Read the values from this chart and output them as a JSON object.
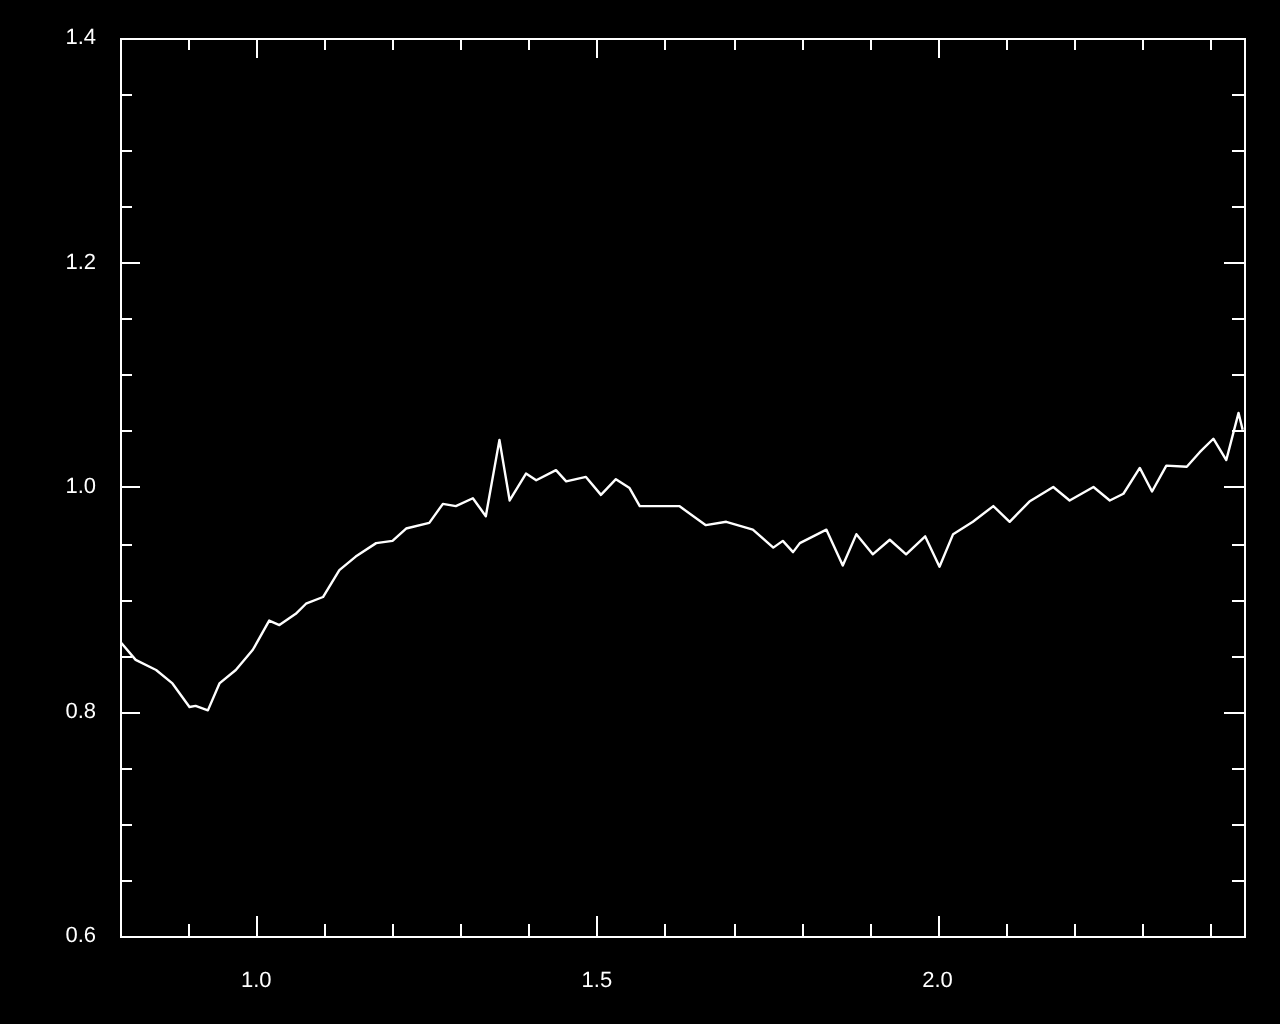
{
  "chart_data": {
    "type": "line",
    "color": "#ffffff",
    "marker": "none",
    "grid": false,
    "legend": false,
    "xlim": [
      0.8,
      2.45
    ],
    "xticks": [
      {
        "value": 0.9,
        "label": null
      },
      {
        "value": 1.0,
        "label": "1.0"
      },
      {
        "value": 1.1,
        "label": null
      },
      {
        "value": 1.2,
        "label": null
      },
      {
        "value": 1.3,
        "label": null
      },
      {
        "value": 1.4,
        "label": null
      },
      {
        "value": 1.5,
        "label": "1.5"
      },
      {
        "value": 1.6,
        "label": null
      },
      {
        "value": 1.7,
        "label": null
      },
      {
        "value": 1.8,
        "label": null
      },
      {
        "value": 1.9,
        "label": null
      },
      {
        "value": 2.0,
        "label": "2.0"
      },
      {
        "value": 2.1,
        "label": null
      },
      {
        "value": 2.2,
        "label": null
      },
      {
        "value": 2.3,
        "label": null
      },
      {
        "value": 2.4,
        "label": null
      }
    ],
    "ylim": [
      0.6,
      1.4
    ],
    "yticks": [
      {
        "value": 0.6,
        "label": "0.6"
      },
      {
        "value": 0.65,
        "label": null
      },
      {
        "value": 0.7,
        "label": null
      },
      {
        "value": 0.75,
        "label": null
      },
      {
        "value": 0.8,
        "label": "0.8"
      },
      {
        "value": 0.85,
        "label": null
      },
      {
        "value": 0.9,
        "label": null
      },
      {
        "value": 0.95,
        "label": null
      },
      {
        "value": 1.0,
        "label": "1.0"
      },
      {
        "value": 1.05,
        "label": null
      },
      {
        "value": 1.1,
        "label": null
      },
      {
        "value": 1.15,
        "label": null
      },
      {
        "value": 1.2,
        "label": "1.2"
      },
      {
        "value": 1.25,
        "label": null
      },
      {
        "value": 1.3,
        "label": null
      },
      {
        "value": 1.35,
        "label": null
      },
      {
        "value": 1.4,
        "label": "1.4"
      }
    ],
    "x": [
      0.802,
      0.823,
      0.853,
      0.877,
      0.902,
      0.911,
      0.929,
      0.946,
      0.97,
      0.995,
      1.019,
      1.034,
      1.058,
      1.073,
      1.098,
      1.122,
      1.146,
      1.176,
      1.2,
      1.22,
      1.254,
      1.274,
      1.293,
      1.318,
      1.337,
      1.357,
      1.372,
      1.396,
      1.411,
      1.44,
      1.455,
      1.484,
      1.506,
      1.528,
      1.548,
      1.563,
      1.582,
      1.621,
      1.66,
      1.69,
      1.729,
      1.759,
      1.773,
      1.788,
      1.798,
      1.837,
      1.861,
      1.881,
      1.905,
      1.93,
      1.954,
      1.982,
      2.003,
      2.023,
      2.052,
      2.082,
      2.106,
      2.135,
      2.17,
      2.194,
      2.229,
      2.253,
      2.273,
      2.297,
      2.315,
      2.336,
      2.366,
      2.385,
      2.405,
      2.424,
      2.442,
      2.448
    ],
    "values": [
      0.861,
      0.846,
      0.837,
      0.825,
      0.804,
      0.805,
      0.801,
      0.825,
      0.837,
      0.855,
      0.881,
      0.877,
      0.887,
      0.896,
      0.902,
      0.926,
      0.938,
      0.95,
      0.952,
      0.963,
      0.968,
      0.985,
      0.983,
      0.99,
      0.974,
      1.042,
      0.988,
      1.012,
      1.006,
      1.015,
      1.005,
      1.009,
      0.993,
      1.007,
      0.999,
      0.983,
      0.983,
      0.983,
      0.966,
      0.969,
      0.962,
      0.946,
      0.952,
      0.942,
      0.95,
      0.962,
      0.93,
      0.958,
      0.94,
      0.953,
      0.94,
      0.956,
      0.929,
      0.958,
      0.969,
      0.983,
      0.969,
      0.987,
      1.0,
      0.988,
      1.0,
      0.988,
      0.994,
      1.017,
      0.996,
      1.019,
      1.018,
      1.031,
      1.043,
      1.024,
      1.066,
      1.051
    ]
  }
}
